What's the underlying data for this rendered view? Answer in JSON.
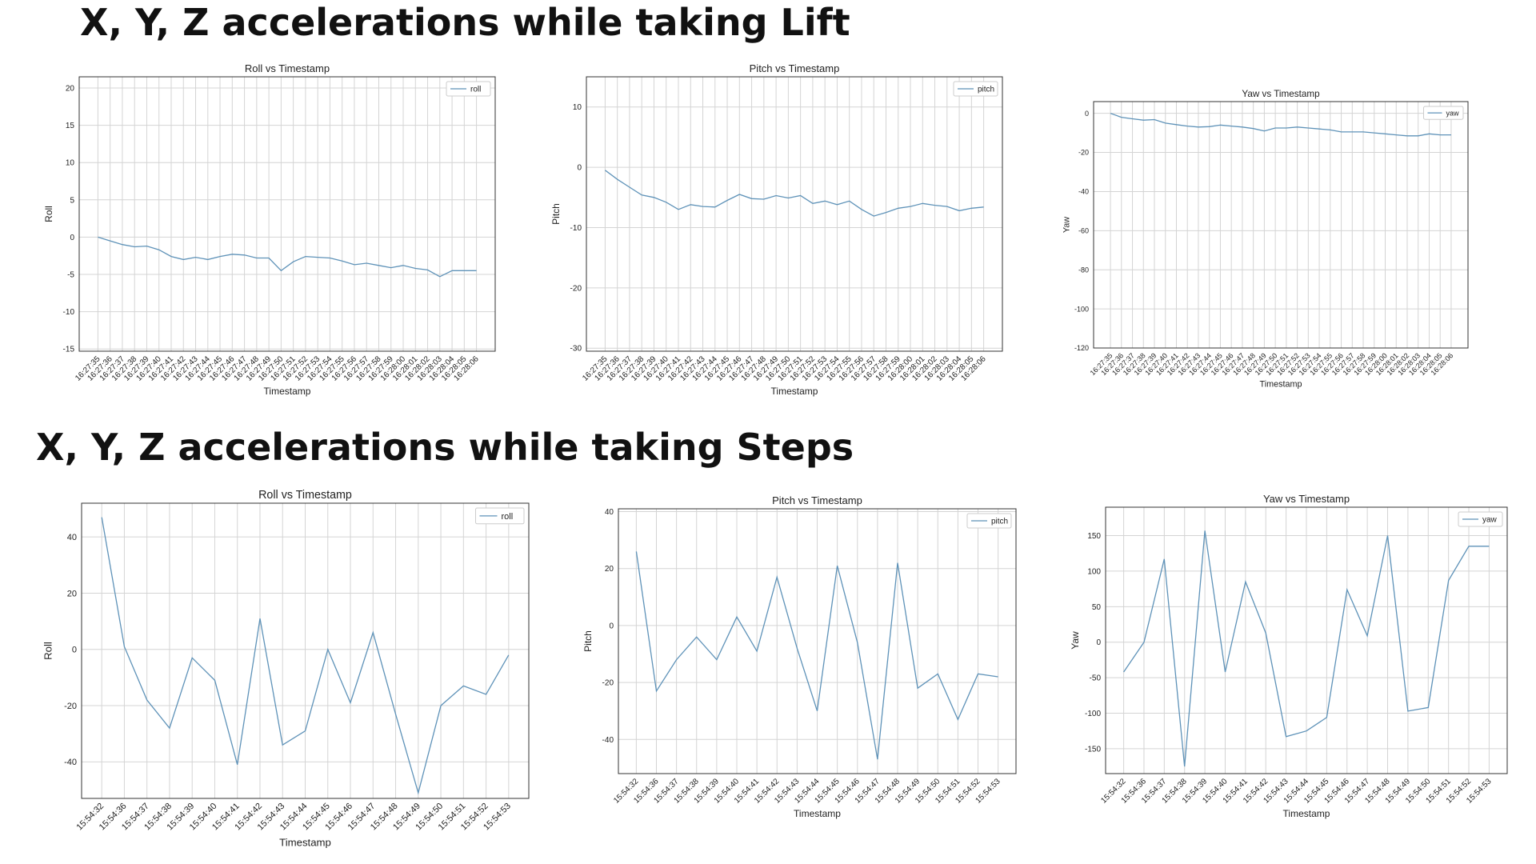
{
  "headings": [
    "X, Y, Z accelerations while taking Lift",
    "X, Y, Z accelerations while taking Steps"
  ],
  "chart_data": [
    {
      "type": "line",
      "title": "Roll vs Timestamp",
      "xlabel": "Timestamp",
      "ylabel": "Roll",
      "categories": [
        "16:27:35",
        "16:27:36",
        "16:27:37",
        "16:27:38",
        "16:27:39",
        "16:27:40",
        "16:27:41",
        "16:27:42",
        "16:27:43",
        "16:27:44",
        "16:27:45",
        "16:27:46",
        "16:27:47",
        "16:27:48",
        "16:27:49",
        "16:27:50",
        "16:27:51",
        "16:27:52",
        "16:27:53",
        "16:27:54",
        "16:27:55",
        "16:27:56",
        "16:27:57",
        "16:27:58",
        "16:27:59",
        "16:28:00",
        "16:28:01",
        "16:28:02",
        "16:28:03",
        "16:28:04",
        "16:28:05",
        "16:28:06"
      ],
      "series": [
        {
          "name": "roll",
          "color": "#5e92b8",
          "values": [
            0,
            -0.5,
            -1,
            -1.3,
            -1.2,
            -1.7,
            -2.6,
            -3,
            -2.7,
            -3,
            -2.6,
            -2.3,
            -2.4,
            -2.8,
            -2.8,
            -4.5,
            -3.3,
            -2.6,
            -2.7,
            -2.8,
            -3.2,
            -3.7,
            -3.5,
            -3.8,
            -4.1,
            -3.8,
            -4.2,
            -4.4,
            -5.3,
            -4.5,
            -4.5,
            -4.5
          ]
        }
      ],
      "ylim": [
        -15.3,
        21.5
      ],
      "yticks": [
        -15,
        -10,
        -5,
        0,
        5,
        10,
        15,
        20
      ],
      "grid": true,
      "legend": "upper right"
    },
    {
      "type": "line",
      "title": "Pitch vs Timestamp",
      "xlabel": "Timestamp",
      "ylabel": "Pitch",
      "categories": [
        "16:27:35",
        "16:27:36",
        "16:27:37",
        "16:27:38",
        "16:27:39",
        "16:27:40",
        "16:27:41",
        "16:27:42",
        "16:27:43",
        "16:27:44",
        "16:27:45",
        "16:27:46",
        "16:27:47",
        "16:27:48",
        "16:27:49",
        "16:27:50",
        "16:27:51",
        "16:27:52",
        "16:27:53",
        "16:27:54",
        "16:27:55",
        "16:27:56",
        "16:27:57",
        "16:27:58",
        "16:27:59",
        "16:28:00",
        "16:28:01",
        "16:28:02",
        "16:28:03",
        "16:28:04",
        "16:28:05",
        "16:28:06"
      ],
      "series": [
        {
          "name": "pitch",
          "color": "#5e92b8",
          "values": [
            -0.5,
            -2,
            -3.3,
            -4.6,
            -5,
            -5.8,
            -7,
            -6.2,
            -6.5,
            -6.6,
            -5.5,
            -4.5,
            -5.2,
            -5.3,
            -4.7,
            -5.1,
            -4.7,
            -6,
            -5.6,
            -6.2,
            -5.6,
            -7,
            -8.1,
            -7.5,
            -6.8,
            -6.5,
            -6,
            -6.3,
            -6.5,
            -7.2,
            -6.8,
            -6.6
          ]
        }
      ],
      "ylim": [
        -30.5,
        15
      ],
      "yticks": [
        -30,
        -20,
        -10,
        0,
        10
      ],
      "grid": true,
      "legend": "upper right"
    },
    {
      "type": "line",
      "title": "Yaw vs Timestamp",
      "xlabel": "Timestamp",
      "ylabel": "Yaw",
      "categories": [
        "16:27:35",
        "16:27:36",
        "16:27:37",
        "16:27:38",
        "16:27:39",
        "16:27:40",
        "16:27:41",
        "16:27:42",
        "16:27:43",
        "16:27:44",
        "16:27:45",
        "16:27:46",
        "16:27:47",
        "16:27:48",
        "16:27:49",
        "16:27:50",
        "16:27:51",
        "16:27:52",
        "16:27:53",
        "16:27:54",
        "16:27:55",
        "16:27:56",
        "16:27:57",
        "16:27:58",
        "16:27:59",
        "16:28:00",
        "16:28:01",
        "16:28:02",
        "16:28:03",
        "16:28:04",
        "16:28:05",
        "16:28:06"
      ],
      "series": [
        {
          "name": "yaw",
          "color": "#5e92b8",
          "values": [
            0,
            -2,
            -2.8,
            -3.5,
            -3.2,
            -5,
            -5.8,
            -6.5,
            -7,
            -6.8,
            -6,
            -6.5,
            -7,
            -7.8,
            -9,
            -7.5,
            -7.5,
            -7,
            -7.5,
            -8,
            -8.5,
            -9.5,
            -9.5,
            -9.5,
            -10,
            -10.5,
            -11,
            -11.5,
            -11.5,
            -10.5,
            -11,
            -11
          ]
        }
      ],
      "ylim": [
        -120,
        6
      ],
      "yticks": [
        -120,
        -100,
        -80,
        -60,
        -40,
        -20,
        0
      ],
      "grid": true,
      "legend": "upper right"
    },
    {
      "type": "line",
      "title": "Roll vs Timestamp",
      "xlabel": "Timestamp",
      "ylabel": "Roll",
      "categories": [
        "15:54:32",
        "15:54:36",
        "15:54:37",
        "15:54:38",
        "15:54:39",
        "15:54:40",
        "15:54:41",
        "15:54:42",
        "15:54:43",
        "15:54:44",
        "15:54:45",
        "15:54:46",
        "15:54:47",
        "15:54:48",
        "15:54:49",
        "15:54:50",
        "15:54:51",
        "15:54:52",
        "15:54:53"
      ],
      "series": [
        {
          "name": "roll",
          "color": "#5e92b8",
          "values": [
            47,
            1,
            -18,
            -28,
            -3,
            -11,
            -41,
            11,
            -34,
            -29,
            0,
            -19,
            6,
            -23,
            -51,
            -20,
            -13,
            -16,
            -2
          ]
        }
      ],
      "ylim": [
        -53,
        52
      ],
      "yticks": [
        -40,
        -20,
        0,
        20,
        40
      ],
      "grid": true,
      "legend": "upper right"
    },
    {
      "type": "line",
      "title": "Pitch vs Timestamp",
      "xlabel": "Timestamp",
      "ylabel": "Pitch",
      "categories": [
        "15:54:32",
        "15:54:36",
        "15:54:37",
        "15:54:38",
        "15:54:39",
        "15:54:40",
        "15:54:41",
        "15:54:42",
        "15:54:43",
        "15:54:44",
        "15:54:45",
        "15:54:46",
        "15:54:47",
        "15:54:48",
        "15:54:49",
        "15:54:50",
        "15:54:51",
        "15:54:52",
        "15:54:53"
      ],
      "series": [
        {
          "name": "pitch",
          "color": "#5e92b8",
          "values": [
            26,
            -23,
            -12,
            -4,
            -12,
            3,
            -9,
            17,
            -8,
            -30,
            21,
            -6,
            -47,
            22,
            -22,
            -17,
            -33,
            -17,
            -18
          ]
        }
      ],
      "ylim": [
        -52,
        41
      ],
      "yticks": [
        -40,
        -20,
        0,
        20,
        40
      ],
      "grid": true,
      "legend": "upper right"
    },
    {
      "type": "line",
      "title": "Yaw vs Timestamp",
      "xlabel": "Timestamp",
      "ylabel": "Yaw",
      "categories": [
        "15:54:32",
        "15:54:36",
        "15:54:37",
        "15:54:38",
        "15:54:39",
        "15:54:40",
        "15:54:41",
        "15:54:42",
        "15:54:43",
        "15:54:44",
        "15:54:45",
        "15:54:46",
        "15:54:47",
        "15:54:48",
        "15:54:49",
        "15:54:50",
        "15:54:51",
        "15:54:52",
        "15:54:53"
      ],
      "series": [
        {
          "name": "yaw",
          "color": "#5e92b8",
          "values": [
            -42,
            0,
            117,
            -175,
            157,
            -42,
            85,
            13,
            -133,
            -125,
            -106,
            74,
            9,
            150,
            -97,
            -92,
            87,
            135,
            135
          ]
        }
      ],
      "ylim": [
        -185,
        190
      ],
      "yticks": [
        -150,
        -100,
        -50,
        0,
        50,
        100,
        150
      ],
      "grid": true,
      "legend": "upper right"
    }
  ]
}
